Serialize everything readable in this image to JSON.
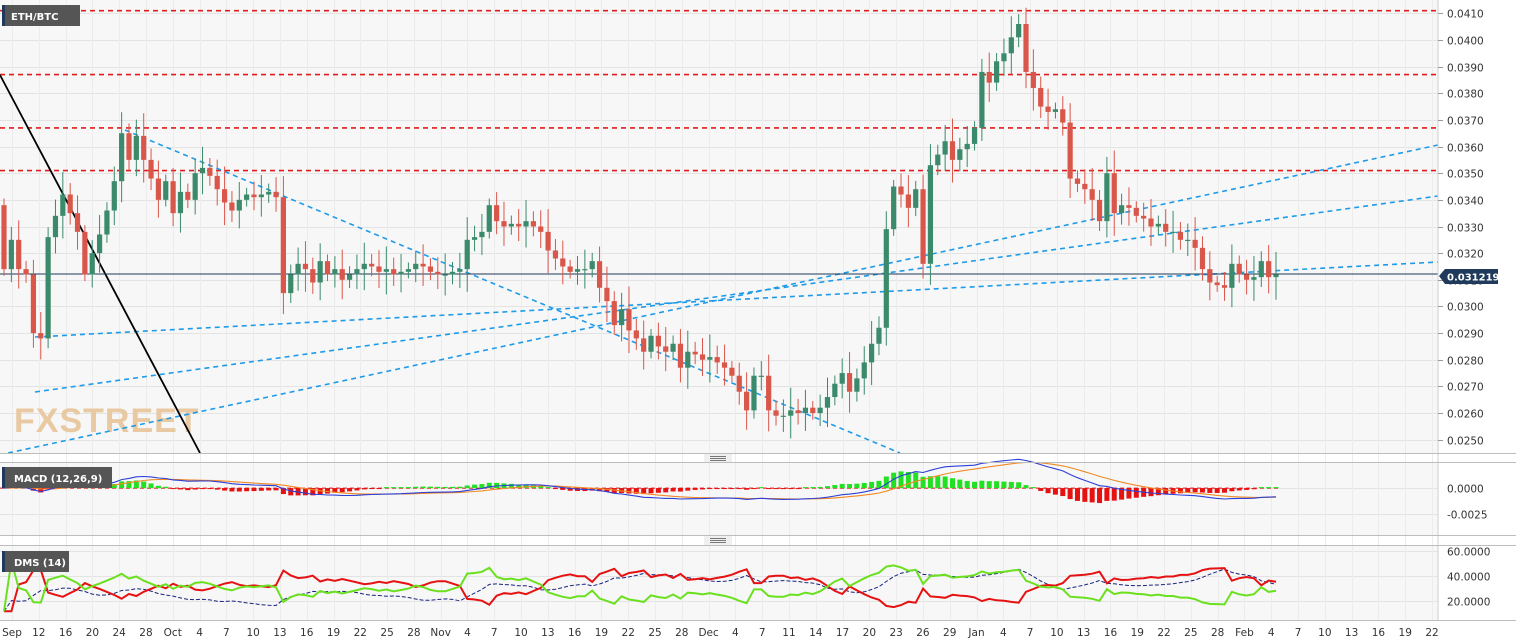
{
  "colors": {
    "bull": "#3a8a6b",
    "bear": "#d9564a",
    "support": "#1e9be8",
    "resistance": "#e21b1b",
    "trendline": "#000000",
    "macd_line": "#2c3fd8",
    "signal_line": "#f08a24",
    "hist_pos": "#22e022",
    "hist_neg": "#e61111",
    "dms_plus": "#6be01f",
    "dms_minus": "#e61111",
    "adx": "#1a237e",
    "price_badge": "#1f3a5a"
  },
  "chart_data": [
    {
      "type": "candlestick",
      "title": "ETH/BTC",
      "ylim": [
        0.0245,
        0.0415
      ],
      "yticks": [
        "0.0410",
        "0.0400",
        "0.0390",
        "0.0380",
        "0.0370",
        "0.0360",
        "0.0350",
        "0.0340",
        "0.0330",
        "0.0320",
        "0.0310",
        "0.0300",
        "0.0290",
        "0.0280",
        "0.0270",
        "0.0260",
        "0.0250"
      ],
      "ytick_values": [
        0.041,
        0.04,
        0.039,
        0.038,
        0.037,
        0.036,
        0.035,
        0.034,
        0.033,
        0.032,
        0.031,
        0.03,
        0.029,
        0.028,
        0.027,
        0.026,
        0.025
      ],
      "last_price_label": "0.031219",
      "last_price": 0.031219,
      "resistance_levels": [
        0.0411,
        0.0387,
        0.0367,
        0.0351
      ],
      "closes": [
        0.0314,
        0.0325,
        0.0314,
        0.0312,
        0.029,
        0.0288,
        0.0326,
        0.0334,
        0.0342,
        0.0335,
        0.0328,
        0.0312,
        0.032,
        0.0327,
        0.0336,
        0.0347,
        0.0365,
        0.0355,
        0.0364,
        0.0355,
        0.0348,
        0.034,
        0.0347,
        0.0335,
        0.0343,
        0.034,
        0.035,
        0.0352,
        0.0349,
        0.0344,
        0.0339,
        0.0336,
        0.034,
        0.0342,
        0.0341,
        0.0342,
        0.0343,
        0.0341,
        0.0305,
        0.0312,
        0.0316,
        0.0314,
        0.0309,
        0.0317,
        0.0312,
        0.0314,
        0.031,
        0.0312,
        0.0314,
        0.0316,
        0.0315,
        0.0313,
        0.0314,
        0.0312,
        0.0313,
        0.0314,
        0.0316,
        0.0315,
        0.0313,
        0.0312,
        0.0312,
        0.0313,
        0.0314,
        0.0325,
        0.0326,
        0.0328,
        0.0338,
        0.0332,
        0.033,
        0.0331,
        0.033,
        0.0332,
        0.033,
        0.0328,
        0.0321,
        0.0318,
        0.0315,
        0.0313,
        0.0314,
        0.0314,
        0.0317,
        0.0307,
        0.0302,
        0.0293,
        0.0299,
        0.0291,
        0.0288,
        0.0283,
        0.0289,
        0.0285,
        0.0283,
        0.0286,
        0.0277,
        0.0283,
        0.0282,
        0.028,
        0.0281,
        0.0279,
        0.0277,
        0.0274,
        0.0268,
        0.0261,
        0.0274,
        0.0274,
        0.0261,
        0.0259,
        0.0259,
        0.0261,
        0.026,
        0.0262,
        0.026,
        0.0262,
        0.0266,
        0.0271,
        0.0275,
        0.0268,
        0.0273,
        0.0279,
        0.0286,
        0.0292,
        0.0329,
        0.0345,
        0.0342,
        0.0337,
        0.0344,
        0.0316,
        0.0353,
        0.0357,
        0.0362,
        0.0355,
        0.0359,
        0.0361,
        0.0367,
        0.0388,
        0.0384,
        0.0392,
        0.0395,
        0.0401,
        0.0406,
        0.0388,
        0.0382,
        0.0375,
        0.0373,
        0.0374,
        0.0369,
        0.0348,
        0.0346,
        0.0344,
        0.034,
        0.0332,
        0.035,
        0.0335,
        0.0338,
        0.0337,
        0.0334,
        0.0333,
        0.033,
        0.0331,
        0.0328,
        0.0328,
        0.0325,
        0.0325,
        0.0322,
        0.0314,
        0.0309,
        0.0308,
        0.0307,
        0.0316,
        0.0312,
        0.031,
        0.0311,
        0.0317,
        0.0311,
        0.0312
      ],
      "x_ticks": [
        "Sep",
        "12",
        "16",
        "20",
        "24",
        "28",
        "Oct",
        "4",
        "7",
        "10",
        "13",
        "16",
        "19",
        "22",
        "25",
        "28",
        "Nov",
        "4",
        "7",
        "10",
        "13",
        "16",
        "19",
        "22",
        "25",
        "28",
        "Dec",
        "4",
        "7",
        "11",
        "14",
        "17",
        "20",
        "23",
        "26",
        "29",
        "Jan",
        "4",
        "7",
        "10",
        "13",
        "16",
        "19",
        "22",
        "25",
        "28",
        "Feb",
        "4",
        "7",
        "10",
        "13",
        "16",
        "19",
        "22"
      ],
      "watermark": "FXSTREET"
    },
    {
      "type": "line",
      "title": "MACD (12,26,9)",
      "ylim": [
        -0.0045,
        0.0025
      ],
      "yticks": [
        "0.0000",
        "-0.0025"
      ],
      "ytick_values": [
        0.0,
        -0.0025
      ]
    },
    {
      "type": "line",
      "title": "DMS (14)",
      "ylim": [
        5,
        65
      ],
      "yticks": [
        "60.0000",
        "40.0000",
        "20.0000"
      ],
      "ytick_values": [
        60,
        40,
        20
      ]
    }
  ]
}
